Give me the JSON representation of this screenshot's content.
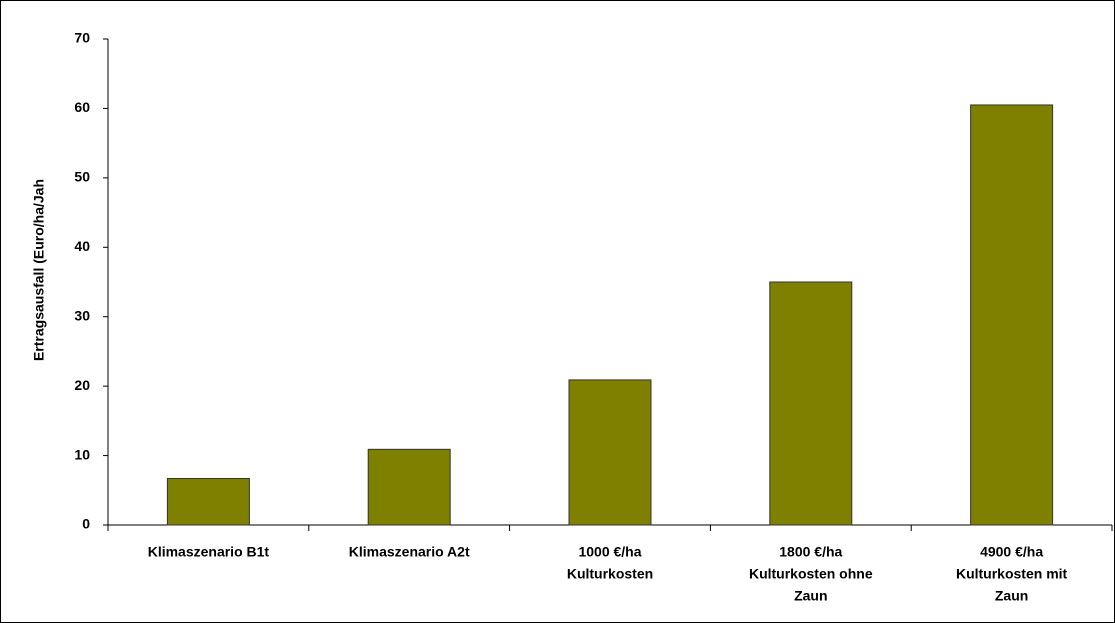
{
  "chart_data": {
    "type": "bar",
    "y_label": "Ertragsausfall (Euro/ha/Jah",
    "categories": [
      [
        "Klimaszenario B1t"
      ],
      [
        "Klimaszenario A2t"
      ],
      [
        "1000 €/ha",
        "Kulturkosten"
      ],
      [
        "1800 €/ha",
        "Kulturkosten ohne",
        "Zaun"
      ],
      [
        "4900 €/ha",
        "Kulturkosten mit",
        "Zaun"
      ]
    ],
    "values": [
      6.7,
      10.9,
      20.9,
      35,
      60.5
    ],
    "color": "#808000",
    "ylim": [
      0,
      70
    ],
    "yticks": [
      0,
      10,
      20,
      30,
      40,
      50,
      60,
      70
    ],
    "grid": false
  }
}
